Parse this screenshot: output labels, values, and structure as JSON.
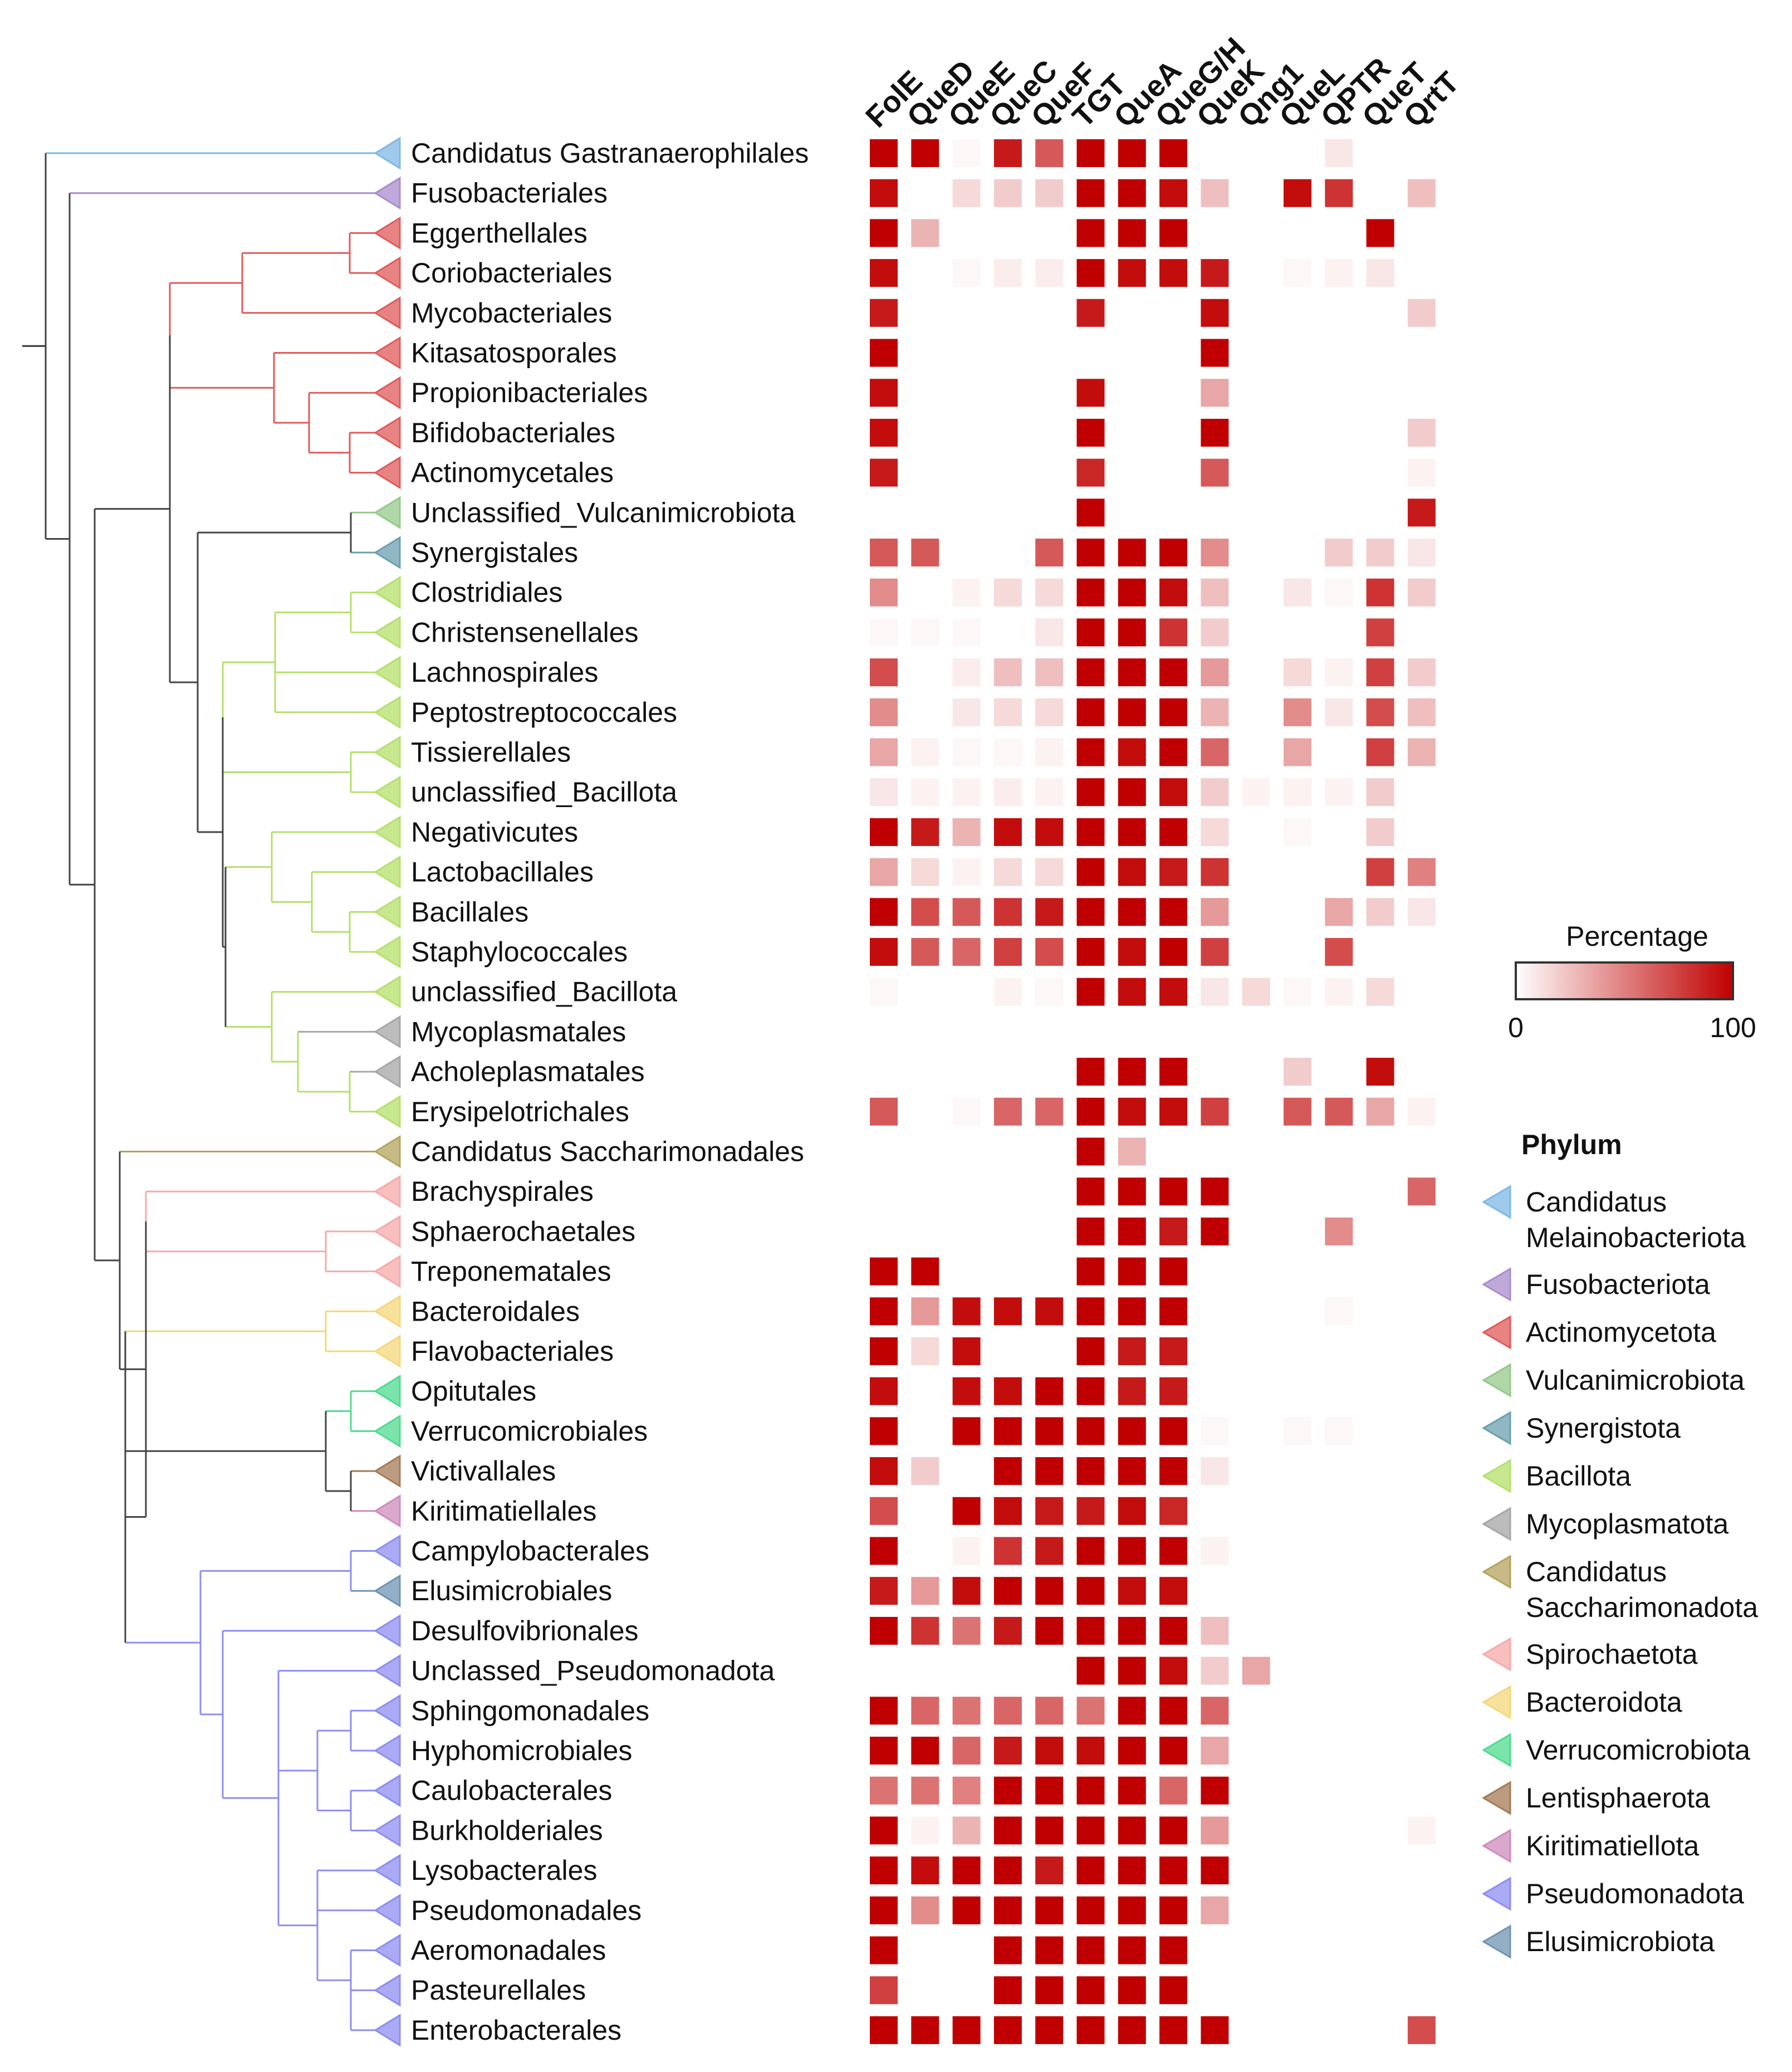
{
  "chart_data": {
    "type": "heatmap",
    "columns": [
      "FolE",
      "QueD",
      "QueE",
      "QueC",
      "QueF",
      "TGT",
      "QueA",
      "QueG/H",
      "QueK",
      "Qng1",
      "QueL",
      "QPTR",
      "QueT",
      "QrtT"
    ],
    "rows": [
      {
        "name": "Candidatus Gastranaerophilales",
        "phylum": "Candidatus Melainobacteriota",
        "values": [
          100,
          100,
          3,
          90,
          65,
          100,
          100,
          100,
          0,
          0,
          0,
          10,
          0,
          0
        ]
      },
      {
        "name": "Fusobacteriales",
        "phylum": "Fusobacteriota",
        "values": [
          95,
          0,
          15,
          20,
          20,
          100,
          100,
          95,
          25,
          0,
          95,
          80,
          0,
          25
        ]
      },
      {
        "name": "Eggerthellales",
        "phylum": "Actinomycetota",
        "values": [
          100,
          30,
          0,
          0,
          0,
          100,
          100,
          100,
          0,
          0,
          0,
          0,
          100,
          0
        ]
      },
      {
        "name": "Coriobacteriales",
        "phylum": "Actinomycetota",
        "values": [
          95,
          0,
          3,
          7,
          7,
          100,
          95,
          95,
          90,
          0,
          3,
          5,
          10,
          0
        ]
      },
      {
        "name": "Mycobacteriales",
        "phylum": "Actinomycetota",
        "values": [
          90,
          0,
          0,
          0,
          0,
          90,
          0,
          0,
          95,
          0,
          0,
          0,
          0,
          20
        ]
      },
      {
        "name": "Kitasatosporales",
        "phylum": "Actinomycetota",
        "values": [
          100,
          0,
          0,
          0,
          0,
          0,
          0,
          0,
          100,
          0,
          0,
          0,
          0,
          0
        ]
      },
      {
        "name": "Propionibacteriales",
        "phylum": "Actinomycetota",
        "values": [
          95,
          0,
          0,
          0,
          0,
          95,
          0,
          0,
          35,
          0,
          0,
          0,
          0,
          0
        ]
      },
      {
        "name": "Bifidobacteriales",
        "phylum": "Actinomycetota",
        "values": [
          95,
          0,
          0,
          0,
          0,
          100,
          0,
          0,
          100,
          0,
          0,
          0,
          0,
          20
        ]
      },
      {
        "name": "Actinomycetales",
        "phylum": "Actinomycetota",
        "values": [
          90,
          0,
          0,
          0,
          0,
          85,
          0,
          0,
          65,
          0,
          0,
          0,
          0,
          5
        ]
      },
      {
        "name": "Unclassified_Vulcanimicrobiota",
        "phylum": "Vulcanimicrobiota",
        "values": [
          0,
          0,
          0,
          0,
          0,
          100,
          0,
          0,
          0,
          0,
          0,
          0,
          0,
          90
        ]
      },
      {
        "name": "Synergistales",
        "phylum": "Synergistota",
        "values": [
          65,
          65,
          0,
          0,
          65,
          100,
          100,
          100,
          45,
          0,
          0,
          20,
          20,
          10
        ]
      },
      {
        "name": "Clostridiales",
        "phylum": "Bacillota",
        "values": [
          45,
          0,
          5,
          15,
          15,
          100,
          100,
          95,
          25,
          0,
          10,
          3,
          80,
          20
        ]
      },
      {
        "name": "Christensenellales",
        "phylum": "Bacillota",
        "values": [
          3,
          3,
          3,
          0,
          10,
          100,
          100,
          80,
          20,
          0,
          0,
          0,
          75,
          0
        ]
      },
      {
        "name": "Lachnospirales",
        "phylum": "Bacillota",
        "values": [
          70,
          0,
          7,
          25,
          25,
          100,
          100,
          100,
          40,
          0,
          15,
          5,
          75,
          20
        ]
      },
      {
        "name": "Peptostreptococcales",
        "phylum": "Bacillota",
        "values": [
          45,
          0,
          10,
          15,
          15,
          100,
          100,
          100,
          30,
          0,
          45,
          10,
          70,
          25
        ]
      },
      {
        "name": "Tissierellales",
        "phylum": "Bacillota",
        "values": [
          35,
          5,
          3,
          3,
          5,
          100,
          95,
          100,
          60,
          0,
          35,
          0,
          75,
          30
        ]
      },
      {
        "name": "unclassified_Bacillota",
        "phylum": "Bacillota",
        "values": [
          10,
          5,
          5,
          7,
          5,
          100,
          100,
          95,
          20,
          5,
          5,
          5,
          20,
          0
        ]
      },
      {
        "name": "Negativicutes",
        "phylum": "Bacillota",
        "values": [
          100,
          90,
          30,
          95,
          95,
          100,
          100,
          100,
          15,
          0,
          3,
          0,
          20,
          0
        ]
      },
      {
        "name": "Lactobacillales",
        "phylum": "Bacillota",
        "values": [
          35,
          15,
          5,
          15,
          15,
          100,
          95,
          90,
          80,
          0,
          0,
          0,
          75,
          50
        ]
      },
      {
        "name": "Bacillales",
        "phylum": "Bacillota",
        "values": [
          100,
          70,
          65,
          80,
          90,
          100,
          100,
          100,
          40,
          0,
          0,
          35,
          20,
          10
        ]
      },
      {
        "name": "Staphylococcales",
        "phylum": "Bacillota",
        "values": [
          95,
          65,
          60,
          75,
          70,
          100,
          95,
          100,
          75,
          0,
          0,
          70,
          0,
          0
        ]
      },
      {
        "name": "unclassified_Bacillota",
        "phylum": "Bacillota",
        "values": [
          3,
          0,
          0,
          5,
          3,
          100,
          95,
          95,
          10,
          15,
          3,
          5,
          15,
          0
        ]
      },
      {
        "name": "Mycoplasmatales",
        "phylum": "Mycoplasmatota",
        "values": [
          0,
          0,
          0,
          0,
          0,
          0,
          0,
          0,
          0,
          0,
          0,
          0,
          0,
          0
        ]
      },
      {
        "name": "Acholeplasmatales",
        "phylum": "Mycoplasmatota",
        "values": [
          0,
          0,
          0,
          0,
          0,
          100,
          100,
          100,
          0,
          0,
          20,
          0,
          95,
          0
        ]
      },
      {
        "name": "Erysipelotrichales",
        "phylum": "Bacillota",
        "values": [
          65,
          0,
          3,
          60,
          60,
          100,
          95,
          95,
          75,
          0,
          65,
          65,
          35,
          5
        ]
      },
      {
        "name": "Candidatus Saccharimonadales",
        "phylum": "Candidatus Saccharimonadota",
        "values": [
          0,
          0,
          0,
          0,
          0,
          100,
          30,
          0,
          0,
          0,
          0,
          0,
          0,
          0
        ]
      },
      {
        "name": "Brachyspirales",
        "phylum": "Spirochaetota",
        "values": [
          0,
          0,
          0,
          0,
          0,
          100,
          100,
          100,
          100,
          0,
          0,
          0,
          0,
          60
        ]
      },
      {
        "name": "Sphaerochaetales",
        "phylum": "Spirochaetota",
        "values": [
          0,
          0,
          0,
          0,
          0,
          100,
          100,
          90,
          100,
          0,
          0,
          45,
          0,
          0
        ]
      },
      {
        "name": "Treponematales",
        "phylum": "Spirochaetota",
        "values": [
          100,
          100,
          0,
          0,
          0,
          100,
          100,
          100,
          0,
          0,
          0,
          0,
          0,
          0
        ]
      },
      {
        "name": "Bacteroidales",
        "phylum": "Bacteroidota",
        "values": [
          100,
          40,
          95,
          95,
          95,
          100,
          100,
          100,
          0,
          0,
          0,
          3,
          0,
          0
        ]
      },
      {
        "name": "Flavobacteriales",
        "phylum": "Bacteroidota",
        "values": [
          100,
          15,
          95,
          0,
          0,
          100,
          90,
          90,
          0,
          0,
          0,
          0,
          0,
          0
        ]
      },
      {
        "name": "Opitutales",
        "phylum": "Verrucomicrobiota",
        "values": [
          95,
          0,
          95,
          95,
          100,
          100,
          90,
          90,
          0,
          0,
          0,
          0,
          0,
          0
        ]
      },
      {
        "name": "Verrucomicrobiales",
        "phylum": "Verrucomicrobiota",
        "values": [
          100,
          0,
          100,
          100,
          100,
          100,
          100,
          100,
          3,
          0,
          3,
          3,
          0,
          0
        ]
      },
      {
        "name": "Victivallales",
        "phylum": "Lentisphaerota",
        "values": [
          95,
          20,
          0,
          100,
          100,
          100,
          100,
          100,
          10,
          0,
          0,
          0,
          0,
          0
        ]
      },
      {
        "name": "Kiritimatiellales",
        "phylum": "Kiritimatiellota",
        "values": [
          70,
          0,
          100,
          95,
          90,
          90,
          95,
          85,
          0,
          0,
          0,
          0,
          0,
          0
        ]
      },
      {
        "name": "Campylobacterales",
        "phylum": "Pseudomonadota",
        "values": [
          100,
          0,
          5,
          80,
          90,
          100,
          100,
          100,
          5,
          0,
          0,
          0,
          0,
          0
        ]
      },
      {
        "name": "Elusimicrobiales",
        "phylum": "Elusimicrobiota",
        "values": [
          90,
          40,
          95,
          100,
          100,
          100,
          95,
          95,
          0,
          0,
          0,
          0,
          0,
          0
        ]
      },
      {
        "name": "Desulfovibrionales",
        "phylum": "Pseudomonadota",
        "values": [
          100,
          80,
          55,
          90,
          100,
          100,
          100,
          100,
          25,
          0,
          0,
          0,
          0,
          0
        ]
      },
      {
        "name": "Unclassed_Pseudomonadota",
        "phylum": "Pseudomonadota",
        "values": [
          0,
          0,
          0,
          0,
          0,
          100,
          100,
          95,
          20,
          35,
          0,
          0,
          0,
          0
        ]
      },
      {
        "name": "Sphingomonadales",
        "phylum": "Pseudomonadota",
        "values": [
          100,
          60,
          55,
          60,
          60,
          55,
          100,
          100,
          60,
          0,
          0,
          0,
          0,
          0
        ]
      },
      {
        "name": "Hyphomicrobiales",
        "phylum": "Pseudomonadota",
        "values": [
          100,
          100,
          60,
          90,
          95,
          95,
          100,
          100,
          35,
          0,
          0,
          0,
          0,
          0
        ]
      },
      {
        "name": "Caulobacterales",
        "phylum": "Pseudomonadota",
        "values": [
          55,
          55,
          50,
          100,
          100,
          100,
          100,
          60,
          100,
          0,
          0,
          0,
          0,
          0
        ]
      },
      {
        "name": "Burkholderiales",
        "phylum": "Pseudomonadota",
        "values": [
          100,
          5,
          30,
          100,
          100,
          100,
          100,
          100,
          40,
          0,
          0,
          0,
          0,
          5
        ]
      },
      {
        "name": "Lysobacterales",
        "phylum": "Pseudomonadota",
        "values": [
          100,
          95,
          100,
          100,
          90,
          100,
          100,
          100,
          100,
          0,
          0,
          0,
          0,
          0
        ]
      },
      {
        "name": "Pseudomonadales",
        "phylum": "Pseudomonadota",
        "values": [
          100,
          45,
          100,
          100,
          100,
          100,
          100,
          100,
          35,
          0,
          0,
          0,
          0,
          0
        ]
      },
      {
        "name": "Aeromonadales",
        "phylum": "Pseudomonadota",
        "values": [
          100,
          0,
          0,
          100,
          100,
          100,
          100,
          100,
          0,
          0,
          0,
          0,
          0,
          0
        ]
      },
      {
        "name": "Pasteurellales",
        "phylum": "Pseudomonadota",
        "values": [
          75,
          0,
          0,
          100,
          100,
          100,
          100,
          100,
          0,
          0,
          0,
          0,
          0,
          0
        ]
      },
      {
        "name": "Enterobacterales",
        "phylum": "Pseudomonadota",
        "values": [
          100,
          100,
          100,
          100,
          100,
          100,
          100,
          100,
          100,
          0,
          0,
          0,
          0,
          70
        ]
      }
    ],
    "color_scale": {
      "title": "Percentage",
      "min": 0,
      "max": 100,
      "min_label": "0",
      "max_label": "100",
      "low_color": "#ffffff",
      "high_color": "#c00000"
    },
    "phylum_legend": {
      "title": "Phylum",
      "entries": [
        {
          "label": [
            "Candidatus",
            "Melainobacteriota"
          ],
          "color": "#7fb8e6"
        },
        {
          "label": [
            "Fusobacteriota"
          ],
          "color": "#a98ccf"
        },
        {
          "label": [
            "Actinomycetota"
          ],
          "color": "#e05a5a"
        },
        {
          "label": [
            "Vulcanimicrobiota"
          ],
          "color": "#94c98a"
        },
        {
          "label": [
            "Synergistota"
          ],
          "color": "#6a9fb0"
        },
        {
          "label": [
            "Bacillota"
          ],
          "color": "#b4e06a"
        },
        {
          "label": [
            "Mycoplasmatota"
          ],
          "color": "#a6a6a6"
        },
        {
          "label": [
            "Candidatus",
            "Saccharimonadota"
          ],
          "color": "#b5a35c"
        },
        {
          "label": [
            "Spirochaetota"
          ],
          "color": "#f7a9a9"
        },
        {
          "label": [
            "Bacteroidota"
          ],
          "color": "#f5d77a"
        },
        {
          "label": [
            "Verrucomicrobiota"
          ],
          "color": "#4fdb8f"
        },
        {
          "label": [
            "Lentisphaerota"
          ],
          "color": "#a57a55"
        },
        {
          "label": [
            "Kiritimatiellota"
          ],
          "color": "#cf8bbc"
        },
        {
          "label": [
            "Pseudomonadota"
          ],
          "color": "#8d8df2"
        },
        {
          "label": [
            "Elusimicrobiota"
          ],
          "color": "#6f94b3"
        }
      ]
    }
  }
}
